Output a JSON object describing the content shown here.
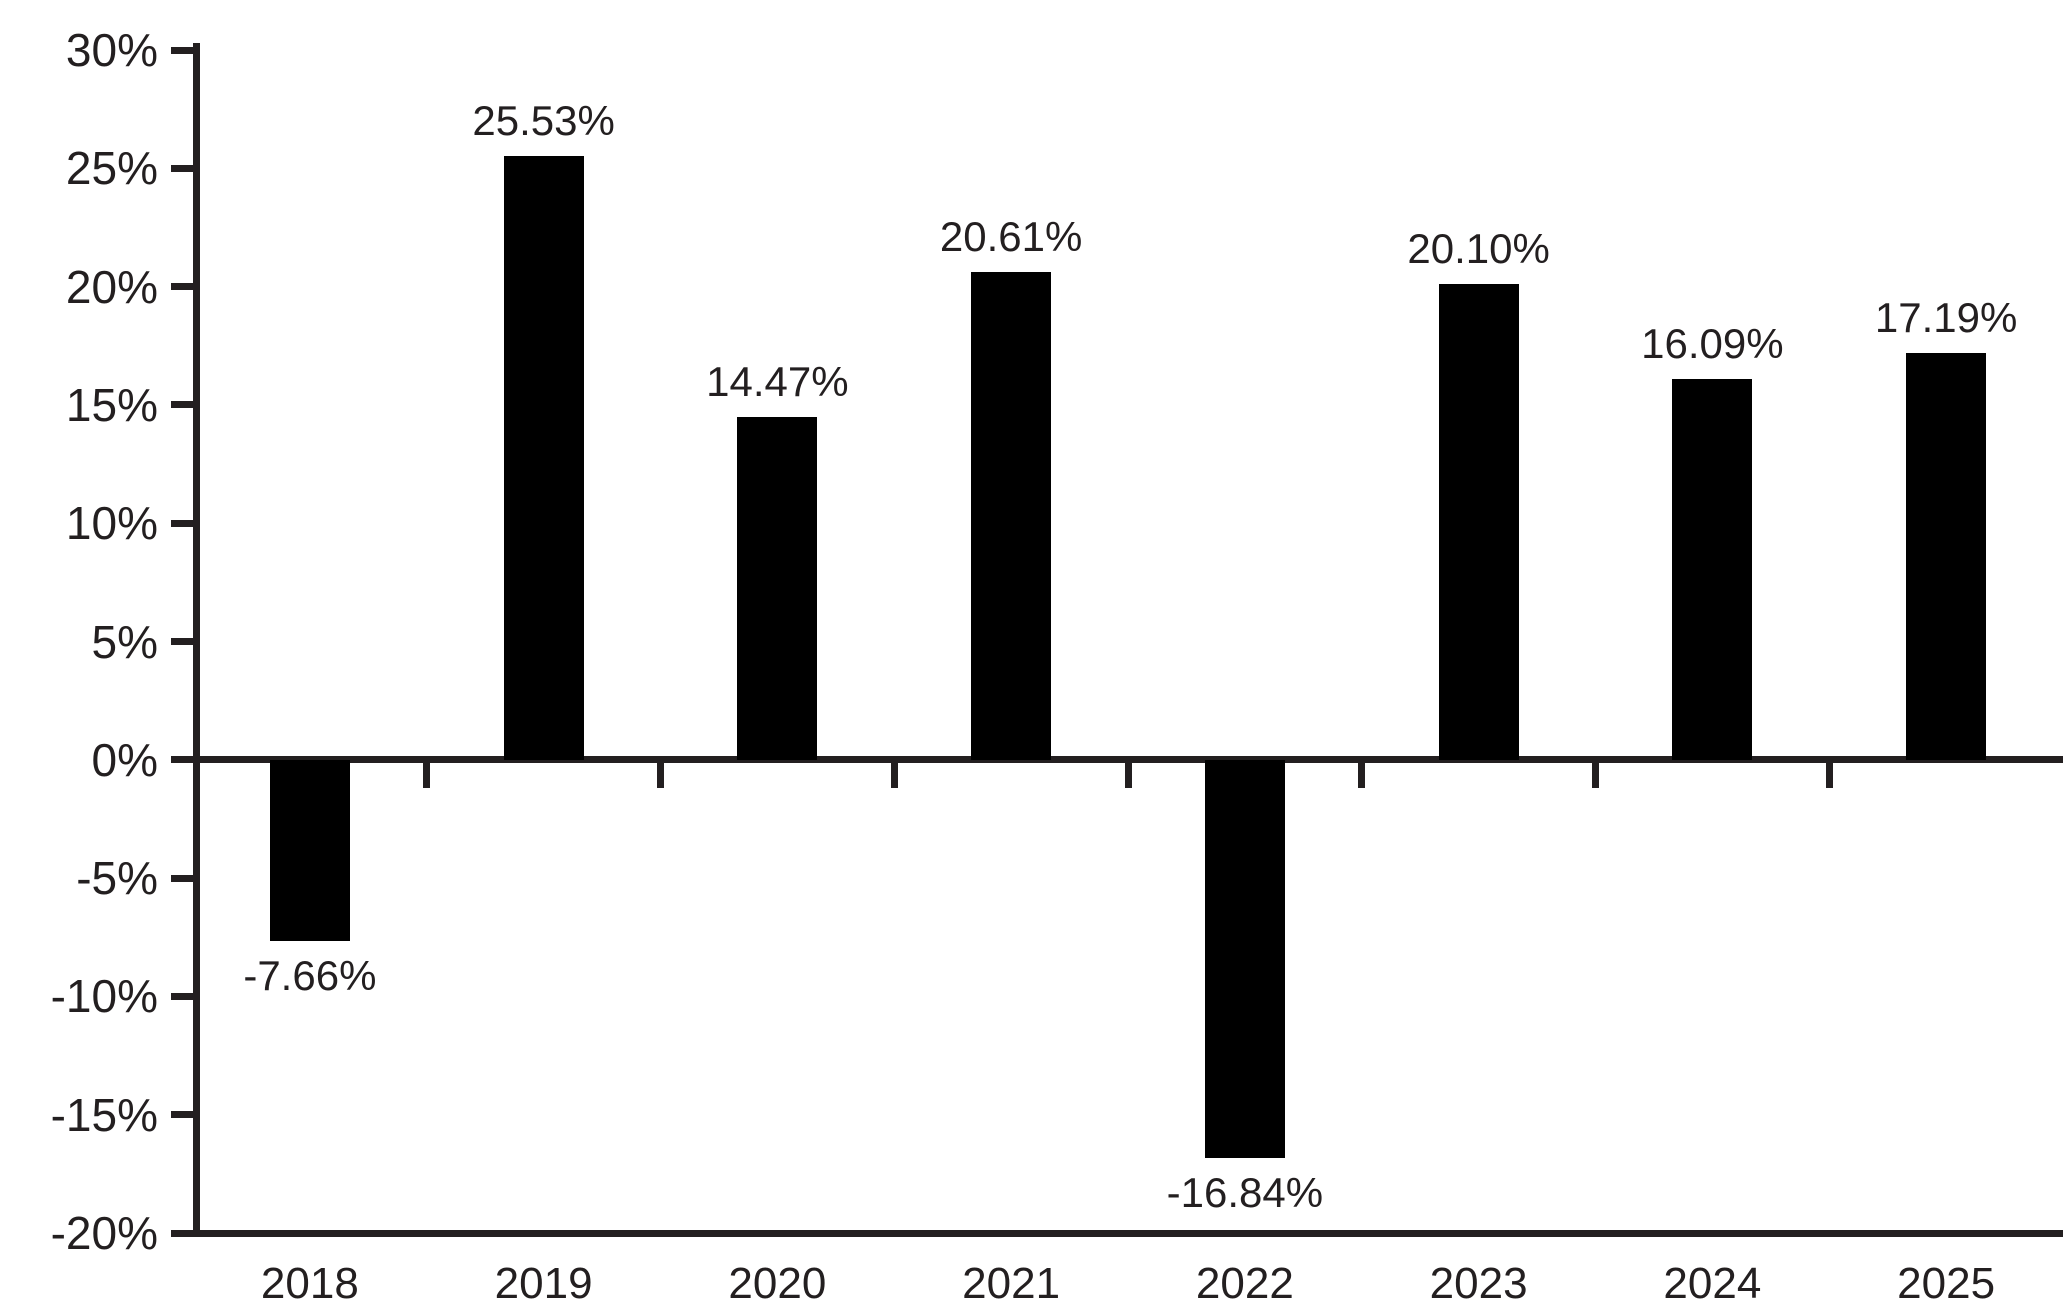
{
  "chart_data": {
    "type": "bar",
    "title": "",
    "categories": [
      "2018",
      "2019",
      "2020",
      "2021",
      "2022",
      "2023",
      "2024",
      "2025"
    ],
    "values": [
      -7.66,
      25.53,
      14.47,
      20.61,
      -16.84,
      20.1,
      16.09,
      17.19
    ],
    "bar_labels": [
      "-7.66%",
      "25.53%",
      "14.47%",
      "20.61%",
      "-16.84%",
      "20.10%",
      "16.09%",
      "17.19%"
    ],
    "xlabel": "",
    "ylabel": "",
    "ylim": [
      -20,
      30
    ],
    "y_tick_step": 5,
    "y_tick_values": [
      30,
      25,
      20,
      15,
      10,
      5,
      0,
      -5,
      -10,
      -15,
      -20
    ],
    "y_tick_labels": [
      "30%",
      "25%",
      "20%",
      "15%",
      "10%",
      "5%",
      "0%",
      "-5%",
      "-10%",
      "-15%",
      "-20%"
    ],
    "grid": "off",
    "legend": "none",
    "bar_color": "#000000",
    "axis_color": "#231f20",
    "label_color": "#231f20",
    "background_color": "#ffffff"
  }
}
